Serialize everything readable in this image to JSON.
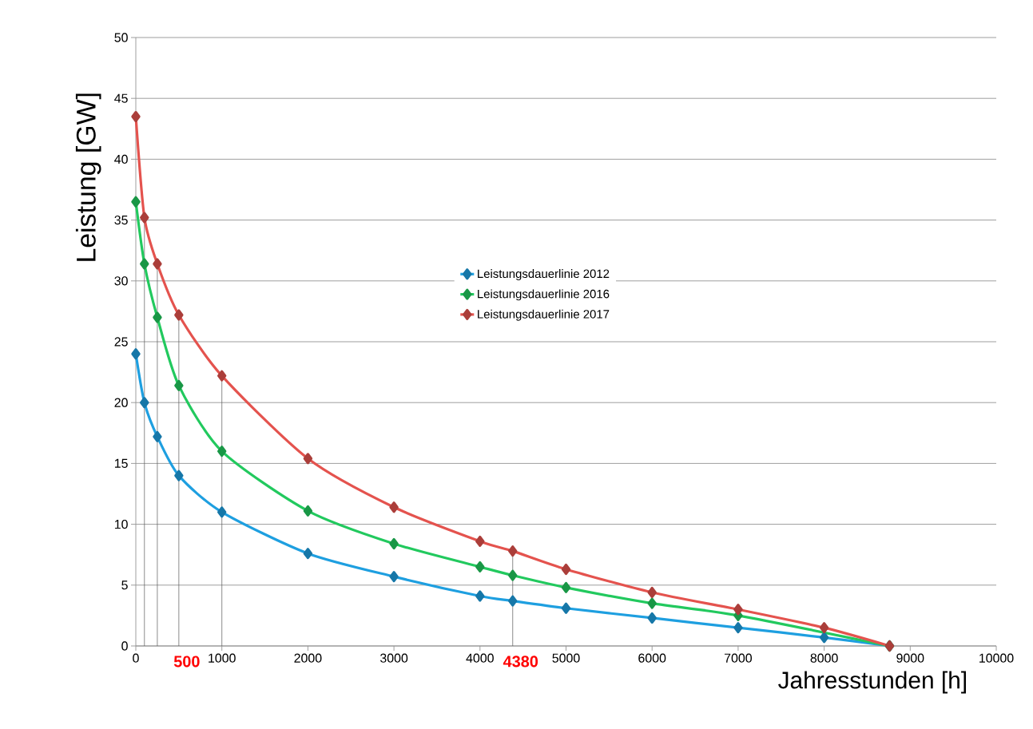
{
  "chart_data": {
    "type": "line",
    "xlabel": "Jahresstunden [h]",
    "ylabel": "Leistung [GW]",
    "x": [
      0,
      100,
      250,
      500,
      1000,
      2000,
      3000,
      4000,
      4380,
      5000,
      6000,
      7000,
      8000,
      8760
    ],
    "series": [
      {
        "name": "Leistungsdauerlinie 2012",
        "color": "#1e9fe0",
        "values": [
          24,
          20,
          17.2,
          14,
          11,
          7.6,
          5.7,
          4.1,
          3.7,
          3.1,
          2.3,
          1.5,
          0.7,
          0
        ]
      },
      {
        "name": "Leistungsdauerlinie 2016",
        "color": "#22c95e",
        "values": [
          36.5,
          31.4,
          27,
          21.4,
          16,
          11.1,
          8.4,
          6.5,
          5.8,
          4.8,
          3.5,
          2.5,
          null,
          0
        ]
      },
      {
        "name": "Leistungsdauerlinie 2017",
        "color": "#e4534e",
        "values": [
          43.5,
          35.2,
          31.4,
          27.2,
          22.2,
          15.4,
          11.4,
          8.6,
          7.8,
          6.3,
          4.4,
          3.0,
          1.5,
          0
        ]
      }
    ],
    "xlim": [
      0,
      10000
    ],
    "xticks": [
      0,
      1000,
      2000,
      3000,
      4000,
      5000,
      6000,
      7000,
      8000,
      9000,
      10000
    ],
    "ylim": [
      0,
      50
    ],
    "yticks": [
      0,
      5,
      10,
      15,
      20,
      25,
      30,
      35,
      40,
      45,
      50
    ],
    "ref_lines": [
      {
        "axis": "x",
        "value": 100
      },
      {
        "axis": "x",
        "value": 250
      },
      {
        "axis": "x",
        "value": 500
      },
      {
        "axis": "x",
        "value": 1000
      },
      {
        "axis": "x",
        "value": 4380
      }
    ],
    "annotations": [
      {
        "text": "500",
        "x": 500,
        "y": 0
      },
      {
        "text": "4380",
        "x": 4380,
        "y": 0
      }
    ],
    "grid": "y",
    "legend": "center",
    "marker": "diamond",
    "line_style": "solid"
  }
}
